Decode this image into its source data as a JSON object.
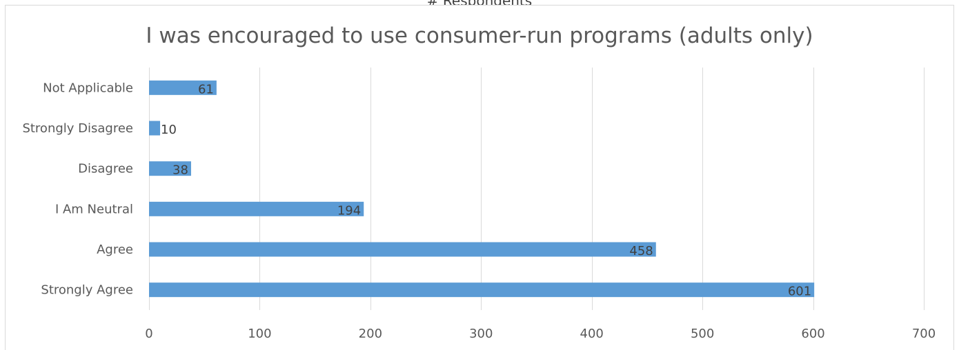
{
  "header": {
    "clipped_text": "# Respondents"
  },
  "chart_data": {
    "type": "bar",
    "orientation": "horizontal",
    "title": "I was encouraged to use consumer-run programs (adults only)",
    "categories": [
      "Strongly Agree",
      "Agree",
      "I Am Neutral",
      "Disagree",
      "Strongly Disagree",
      "Not Applicable"
    ],
    "values": [
      601,
      458,
      194,
      38,
      10,
      61
    ],
    "xlim": [
      0,
      700
    ],
    "xticks": [
      0,
      100,
      200,
      300,
      400,
      500,
      600,
      700
    ],
    "grid": true,
    "legend": "none",
    "bar_color": "#5B9BD5",
    "grid_color": "#D9D9D9"
  }
}
